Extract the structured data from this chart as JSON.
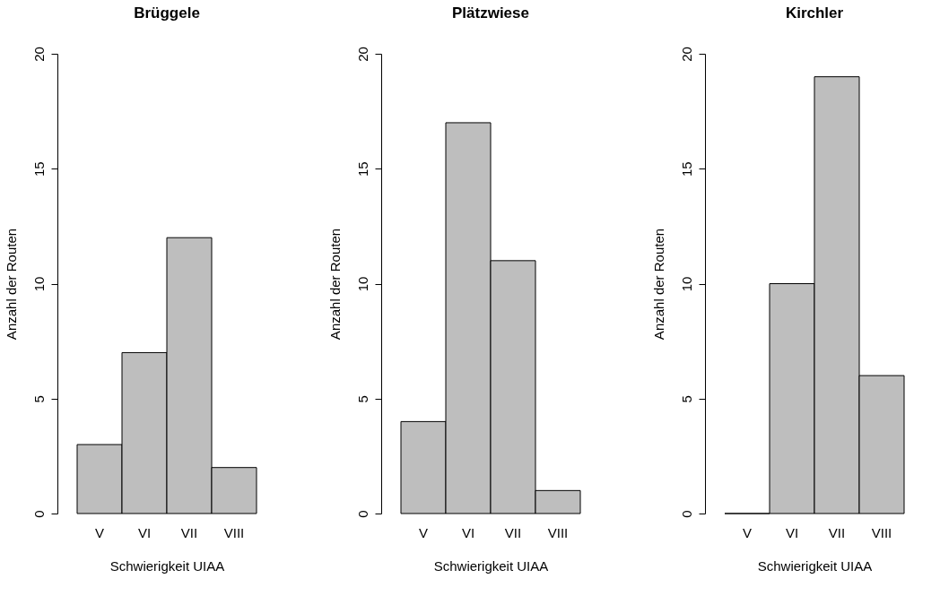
{
  "chart_data": [
    {
      "type": "bar",
      "title": "Brüggele",
      "categories": [
        "V",
        "VI",
        "VII",
        "VIII"
      ],
      "values": [
        3,
        7,
        12,
        2
      ],
      "color": "#bebebe",
      "xlabel": "Schwierigkeit UIAA",
      "ylabel": "Anzahl der Routen",
      "ylim": [
        0,
        20
      ],
      "yticks": [
        0,
        5,
        10,
        15,
        20
      ],
      "grid": false
    },
    {
      "type": "bar",
      "title": "Plätzwiese",
      "categories": [
        "V",
        "VI",
        "VII",
        "VIII"
      ],
      "values": [
        4,
        17,
        11,
        1
      ],
      "color": "#bebebe",
      "xlabel": "Schwierigkeit UIAA",
      "ylabel": "Anzahl der Routen",
      "ylim": [
        0,
        20
      ],
      "yticks": [
        0,
        5,
        10,
        15,
        20
      ],
      "grid": false
    },
    {
      "type": "bar",
      "title": "Kirchler",
      "categories": [
        "V",
        "VI",
        "VII",
        "VIII"
      ],
      "values": [
        0,
        10,
        19,
        6
      ],
      "color": "#bebebe",
      "xlabel": "Schwierigkeit UIAA",
      "ylabel": "Anzahl der Routen",
      "ylim": [
        0,
        20
      ],
      "yticks": [
        0,
        5,
        10,
        15,
        20
      ],
      "grid": false
    }
  ]
}
